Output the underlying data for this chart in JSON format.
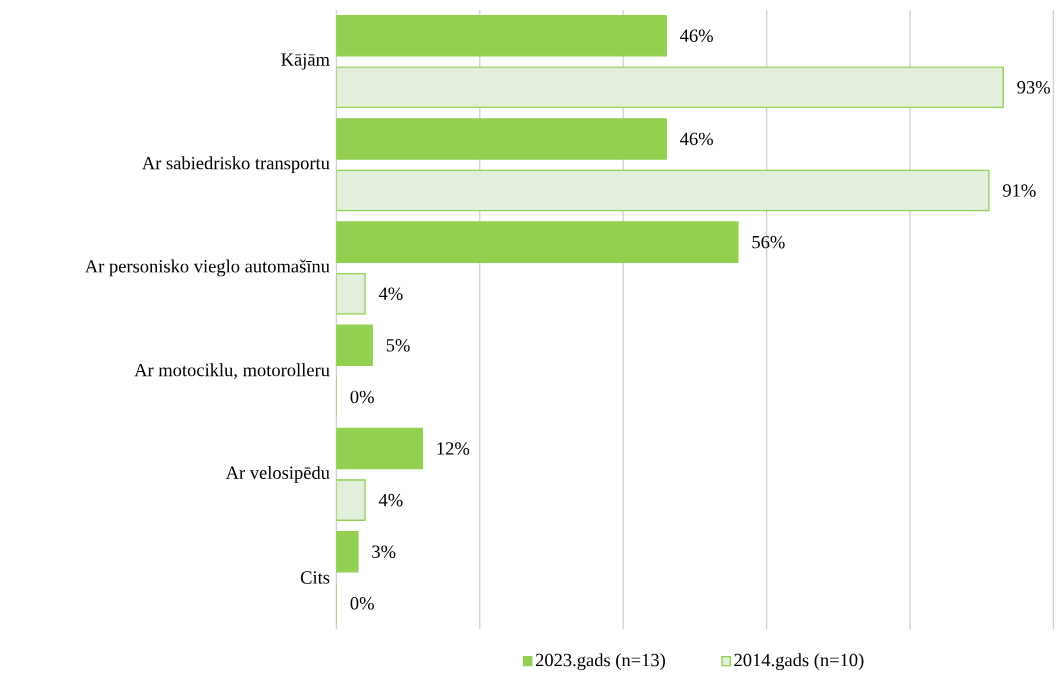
{
  "chart_data": {
    "type": "bar",
    "orientation": "horizontal",
    "categories": [
      "Kājām",
      "Ar sabiedrisko transportu",
      "Ar personisko vieglo automašīnu",
      "Ar motociklu, motorolleru",
      "Ar velosipēdu",
      "Cits"
    ],
    "series": [
      {
        "name": "2023.gads (n=13)",
        "color": "#92d050",
        "values": [
          46,
          46,
          56,
          5,
          12,
          3
        ],
        "value_labels": [
          "46%",
          "46%",
          "56%",
          "5%",
          "12%",
          "3%"
        ]
      },
      {
        "name": "2014.gads (n=10)",
        "color": "#e2efda",
        "values": [
          93,
          91,
          4,
          0,
          4,
          0
        ],
        "value_labels": [
          "93%",
          "91%",
          "4%",
          "0%",
          "4%",
          "0%"
        ]
      }
    ],
    "xlim": [
      0,
      100
    ],
    "xticks": [
      {
        "value": 0,
        "label": null
      },
      {
        "value": 20,
        "label": null
      },
      {
        "value": 40,
        "label": null
      },
      {
        "value": 60,
        "label": null
      },
      {
        "value": 80,
        "label": null
      },
      {
        "value": 100,
        "label": null
      }
    ],
    "grid": "x",
    "legend": "bottom",
    "tick_labels": "y"
  }
}
